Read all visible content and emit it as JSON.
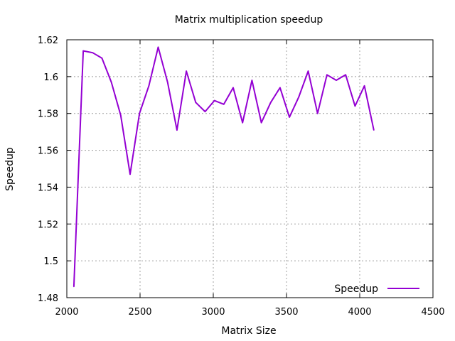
{
  "chart_data": {
    "type": "line",
    "title": "Matrix multiplication speedup",
    "xlabel": "Matrix Size",
    "ylabel": "Speedup",
    "xlim": [
      2000,
      4500
    ],
    "ylim": [
      1.48,
      1.62
    ],
    "xticks": [
      2000,
      2500,
      3000,
      3500,
      4000,
      4500
    ],
    "xtick_labels": [
      "2000",
      "2500",
      "3000",
      "3500",
      "4000",
      "4500"
    ],
    "yticks": [
      1.48,
      1.5,
      1.52,
      1.54,
      1.56,
      1.58,
      1.6,
      1.62
    ],
    "ytick_labels": [
      "1.48",
      "1.5",
      "1.52",
      "1.54",
      "1.56",
      "1.58",
      "1.6",
      "1.62"
    ],
    "grid": true,
    "legend_position": "bottom-right",
    "series": [
      {
        "name": "Speedup",
        "color": "#9400d3",
        "x": [
          2048,
          2112,
          2176,
          2240,
          2304,
          2368,
          2432,
          2496,
          2560,
          2624,
          2688,
          2752,
          2816,
          2880,
          2944,
          3008,
          3072,
          3136,
          3200,
          3264,
          3328,
          3392,
          3456,
          3520,
          3584,
          3648,
          3712,
          3776,
          3840,
          3904,
          3968,
          4032,
          4096
        ],
        "y": [
          1.486,
          1.614,
          1.613,
          1.61,
          1.597,
          1.579,
          1.547,
          1.58,
          1.595,
          1.616,
          1.597,
          1.571,
          1.603,
          1.586,
          1.581,
          1.587,
          1.585,
          1.594,
          1.575,
          1.598,
          1.575,
          1.586,
          1.594,
          1.578,
          1.589,
          1.603,
          1.58,
          1.601,
          1.598,
          1.601,
          1.584,
          1.595,
          1.571
        ]
      }
    ]
  }
}
